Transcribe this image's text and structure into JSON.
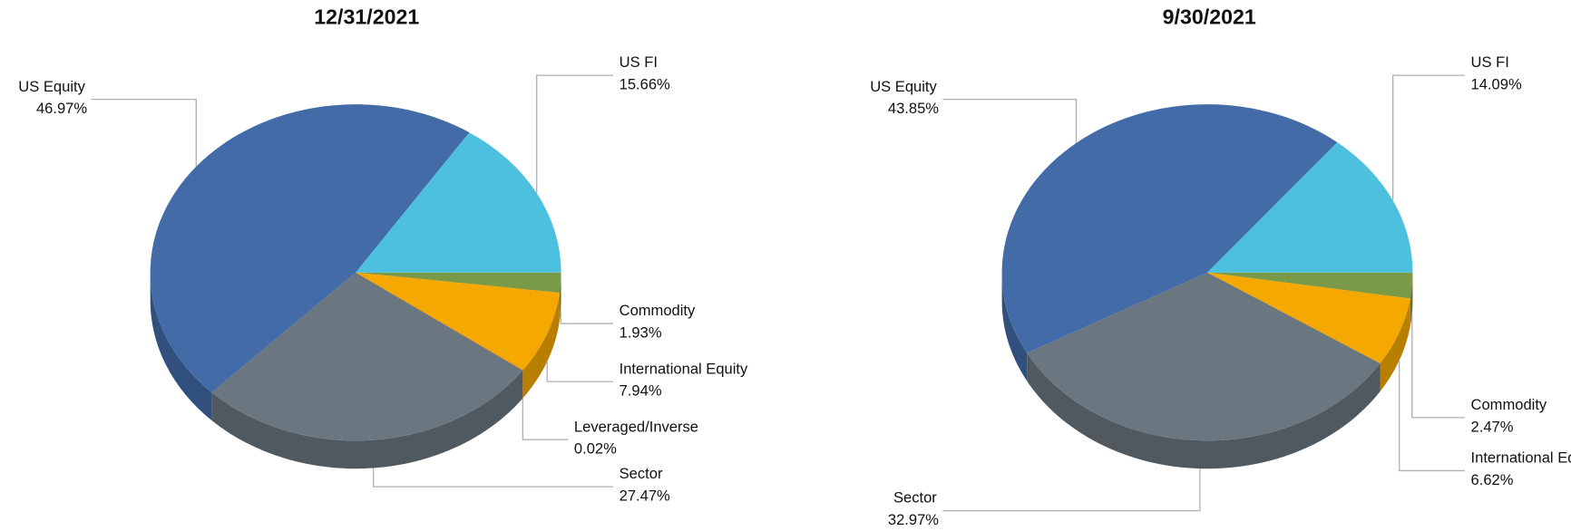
{
  "chart_data": [
    {
      "type": "pie",
      "title": "12/31/2021",
      "categories": [
        "Commodity",
        "International Equity",
        "Leveraged/Inverse",
        "Sector",
        "US Equity",
        "US FI"
      ],
      "values": [
        1.93,
        7.94,
        0.02,
        27.47,
        46.97,
        15.66
      ],
      "value_labels": [
        "1.93%",
        "7.94%",
        "0.02%",
        "27.47%",
        "46.97%",
        "15.66%"
      ],
      "colors": [
        "#7a9a47",
        "#f5a800",
        "#c00000",
        "#6a7680",
        "#436ba8",
        "#4dc0e0"
      ]
    },
    {
      "type": "pie",
      "title": "9/30/2021",
      "categories": [
        "Commodity",
        "International Equity",
        "Sector",
        "US Equity",
        "US FI"
      ],
      "values": [
        2.47,
        6.62,
        32.97,
        43.85,
        14.09
      ],
      "value_labels": [
        "2.47%",
        "6.62%",
        "32.97%",
        "43.85%",
        "14.09%"
      ],
      "colors": [
        "#7a9a47",
        "#f5a800",
        "#6a7680",
        "#436ba8",
        "#4dc0e0"
      ]
    }
  ]
}
